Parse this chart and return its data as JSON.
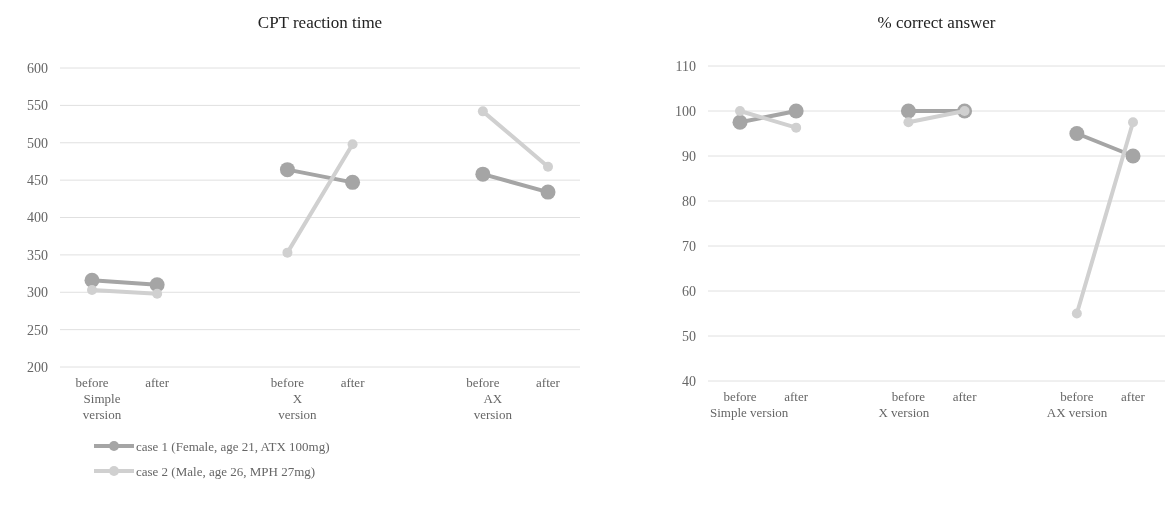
{
  "chart_data": [
    {
      "type": "line",
      "title": "CPT reaction time",
      "categories": [
        "before",
        "after",
        null,
        "before",
        "after",
        null,
        "before",
        "after"
      ],
      "annotations": [
        "Simple version",
        "X version",
        "AX version"
      ],
      "series": [
        {
          "name": "case 1 (Female, age 21, ATX 100mg)",
          "color": "#a5a5a5",
          "values": [
            316,
            310,
            null,
            464,
            447,
            null,
            458,
            434
          ]
        },
        {
          "name": "case 2 (Male, age 26, MPH 27mg)",
          "color": "#d0d0d0",
          "values": [
            303,
            298,
            null,
            353,
            498,
            null,
            542,
            468
          ]
        }
      ],
      "ylim": [
        200,
        600
      ],
      "yticks": [
        200,
        250,
        300,
        350,
        400,
        450,
        500,
        550,
        600
      ],
      "grid": "y",
      "legend": "bottom",
      "marker": "circle",
      "line_style": "solid"
    },
    {
      "type": "line",
      "title": "% correct answer",
      "categories": [
        "before",
        "after",
        null,
        "before",
        "after",
        null,
        "before",
        "after"
      ],
      "annotations": [
        "Simple version",
        "X version",
        "AX version"
      ],
      "series": [
        {
          "color": "#a5a5a5",
          "values": [
            97.5,
            100,
            null,
            100,
            100,
            null,
            95,
            90
          ]
        },
        {
          "color": "#d0d0d0",
          "values": [
            100,
            96.3,
            null,
            97.5,
            100,
            null,
            55,
            97.5
          ]
        }
      ],
      "ylim": [
        40,
        110
      ],
      "yticks": [
        40,
        50,
        60,
        70,
        80,
        90,
        100,
        110
      ],
      "grid": "y",
      "marker": "circle",
      "line_style": "solid"
    }
  ]
}
